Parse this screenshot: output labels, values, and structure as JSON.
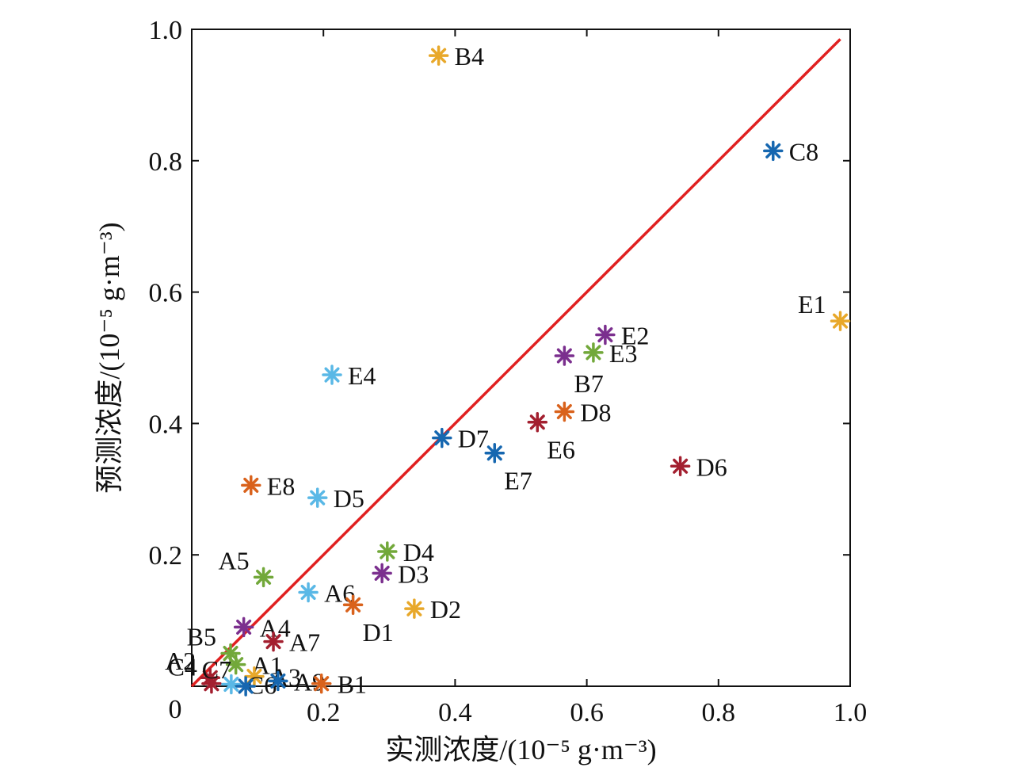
{
  "chart_data": {
    "type": "scatter",
    "xlabel": "实测浓度/(10⁻⁵ g·m⁻³)",
    "ylabel": "预测浓度/(10⁻⁵ g·m⁻³)",
    "xlim": [
      0,
      1.0
    ],
    "ylim": [
      0,
      1.0
    ],
    "x_ticks": [
      "0.2",
      "0.4",
      "0.6",
      "0.8",
      "1.0"
    ],
    "y_ticks": [
      "0.2",
      "0.4",
      "0.6",
      "0.8",
      "1.0"
    ],
    "origin_label": "0",
    "grid": false,
    "legend": "none",
    "reference_line": {
      "x": [
        0,
        0.985
      ],
      "y": [
        0,
        0.985
      ],
      "color": "#e02020"
    },
    "points": [
      {
        "label": "B4",
        "x": 0.375,
        "y": 0.96,
        "color": "#e8a82a",
        "pos": "right"
      },
      {
        "label": "C8",
        "x": 0.883,
        "y": 0.815,
        "color": "#1667b0",
        "pos": "right"
      },
      {
        "label": "E1",
        "x": 0.985,
        "y": 0.556,
        "color": "#e8a82a",
        "pos": "upper-left"
      },
      {
        "label": "E2",
        "x": 0.628,
        "y": 0.535,
        "color": "#7b2f8e",
        "pos": "right"
      },
      {
        "label": "E3",
        "x": 0.61,
        "y": 0.508,
        "color": "#72a83a",
        "pos": "right"
      },
      {
        "label": "B7",
        "x": 0.566,
        "y": 0.503,
        "color": "#7b2f8e",
        "pos": "below-right"
      },
      {
        "label": "E4",
        "x": 0.213,
        "y": 0.474,
        "color": "#5ab8e6",
        "pos": "right"
      },
      {
        "label": "D8",
        "x": 0.566,
        "y": 0.418,
        "color": "#d9621c",
        "pos": "right"
      },
      {
        "label": "E6",
        "x": 0.525,
        "y": 0.402,
        "color": "#a31f2f",
        "pos": "below-right"
      },
      {
        "label": "D7",
        "x": 0.38,
        "y": 0.378,
        "color": "#1667b0",
        "pos": "right"
      },
      {
        "label": "E7",
        "x": 0.46,
        "y": 0.355,
        "color": "#1667b0",
        "pos": "below-right"
      },
      {
        "label": "D6",
        "x": 0.742,
        "y": 0.335,
        "color": "#a31f2f",
        "pos": "right"
      },
      {
        "label": "E8",
        "x": 0.09,
        "y": 0.306,
        "color": "#d9621c",
        "pos": "right"
      },
      {
        "label": "D5",
        "x": 0.191,
        "y": 0.287,
        "color": "#5ab8e6",
        "pos": "right"
      },
      {
        "label": "D4",
        "x": 0.297,
        "y": 0.205,
        "color": "#72a83a",
        "pos": "right"
      },
      {
        "label": "D3",
        "x": 0.289,
        "y": 0.172,
        "color": "#7b2f8e",
        "pos": "right"
      },
      {
        "label": "A5",
        "x": 0.109,
        "y": 0.166,
        "color": "#72a83a",
        "pos": "upper-left"
      },
      {
        "label": "A6",
        "x": 0.177,
        "y": 0.143,
        "color": "#5ab8e6",
        "pos": "right"
      },
      {
        "label": "D1",
        "x": 0.245,
        "y": 0.124,
        "color": "#d9621c",
        "pos": "below-right"
      },
      {
        "label": "D2",
        "x": 0.338,
        "y": 0.118,
        "color": "#e8a82a",
        "pos": "right"
      },
      {
        "label": "A4",
        "x": 0.079,
        "y": 0.09,
        "color": "#7b2f8e",
        "pos": "right"
      },
      {
        "label": "A7",
        "x": 0.124,
        "y": 0.068,
        "color": "#a31f2f",
        "pos": "right"
      },
      {
        "label": "B5",
        "x": 0.059,
        "y": 0.05,
        "color": "#72a83a",
        "pos": "upper-left"
      },
      {
        "label": "A1",
        "x": 0.067,
        "y": 0.033,
        "color": "#72a83a",
        "pos": "right"
      },
      {
        "label": "A2",
        "x": 0.028,
        "y": 0.013,
        "color": "#a31f2f",
        "pos": "upper-left"
      },
      {
        "label": "C4",
        "x": 0.03,
        "y": 0.004,
        "color": "#a31f2f",
        "pos": "upper-left"
      },
      {
        "label": "A3",
        "x": 0.095,
        "y": 0.015,
        "color": "#e8a82a",
        "pos": "right"
      },
      {
        "label": "C6",
        "x": 0.06,
        "y": 0.003,
        "color": "#5ab8e6",
        "pos": "right"
      },
      {
        "label": "C7",
        "x": 0.082,
        "y": 0.0,
        "color": "#1667b0",
        "pos": "upper-left"
      },
      {
        "label": "A9",
        "x": 0.131,
        "y": 0.008,
        "color": "#1667b0",
        "pos": "right"
      },
      {
        "label": "B1",
        "x": 0.197,
        "y": 0.004,
        "color": "#d9621c",
        "pos": "right"
      }
    ]
  }
}
